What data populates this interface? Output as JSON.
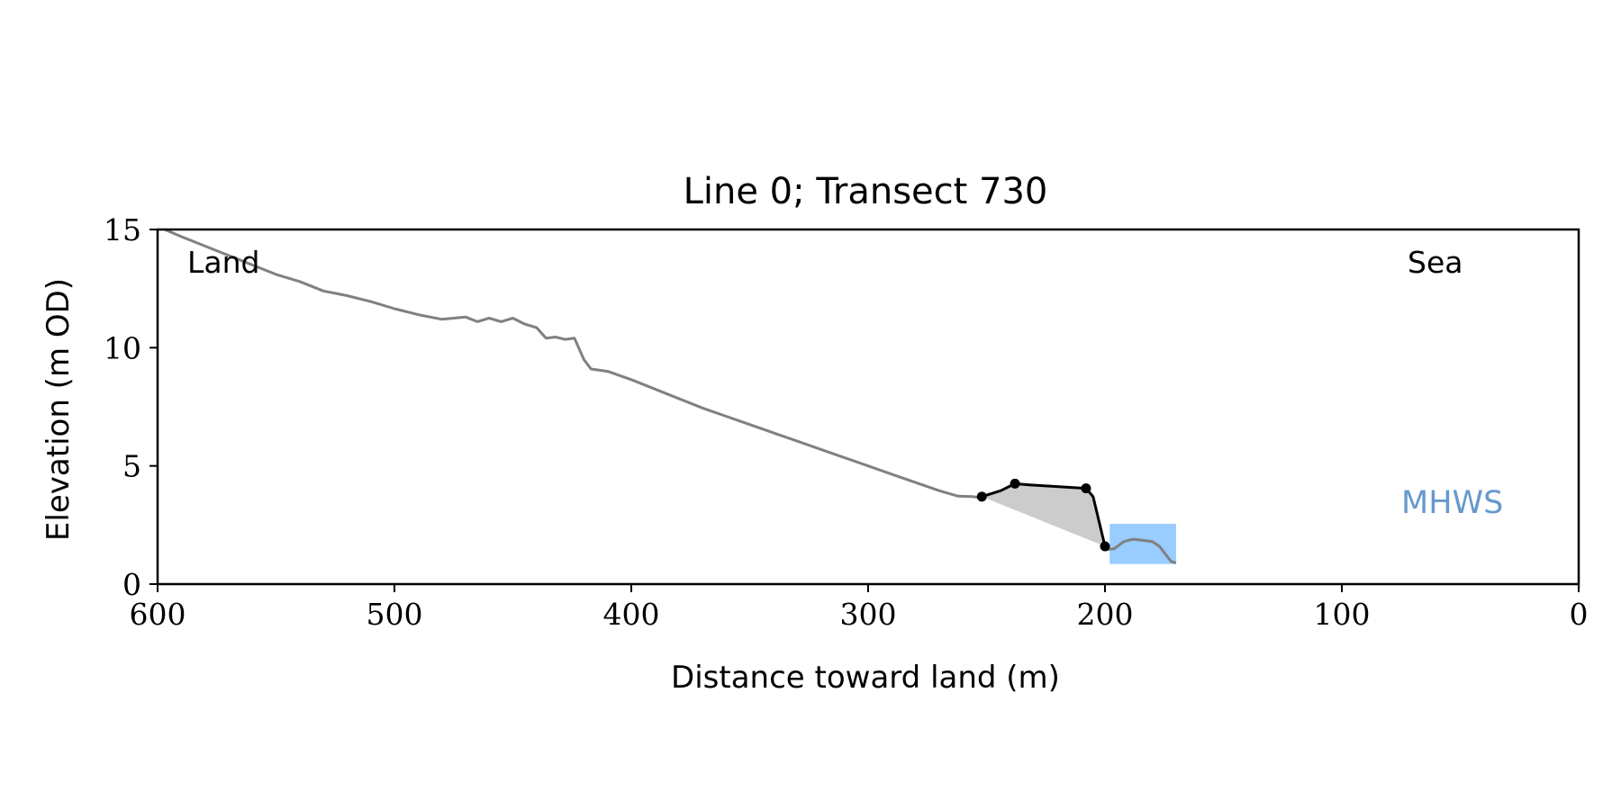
{
  "chart_data": {
    "type": "line",
    "title": "Line 0; Transect 730",
    "xlabel": "Distance toward land (m)",
    "ylabel": "Elevation (m OD)",
    "xlim": [
      600,
      0
    ],
    "ylim": [
      0,
      15
    ],
    "x_ticks": [
      600,
      500,
      400,
      300,
      200,
      100,
      0
    ],
    "y_ticks": [
      0,
      5,
      10,
      15
    ],
    "grid": false,
    "annotations": {
      "land": "Land",
      "sea": "Sea",
      "mhws": "MHWS"
    },
    "colors": {
      "profile": "#808080",
      "feature": "#000000",
      "fill": "#cccccc",
      "water": "#99ccff",
      "mhws_text": "#6699cc"
    },
    "series": [
      {
        "role": "profile",
        "points": [
          [
            597,
            15.0
          ],
          [
            590,
            14.7
          ],
          [
            580,
            14.3
          ],
          [
            570,
            13.9
          ],
          [
            560,
            13.5
          ],
          [
            550,
            13.1
          ],
          [
            540,
            12.8
          ],
          [
            530,
            12.4
          ],
          [
            520,
            12.2
          ],
          [
            510,
            11.95
          ],
          [
            500,
            11.65
          ],
          [
            490,
            11.4
          ],
          [
            480,
            11.2
          ],
          [
            470,
            11.3
          ],
          [
            465,
            11.1
          ],
          [
            460,
            11.25
          ],
          [
            455,
            11.1
          ],
          [
            450,
            11.25
          ],
          [
            445,
            11.0
          ],
          [
            440,
            10.85
          ],
          [
            436,
            10.4
          ],
          [
            432,
            10.45
          ],
          [
            428,
            10.35
          ],
          [
            424,
            10.4
          ],
          [
            420,
            9.5
          ],
          [
            417,
            9.1
          ],
          [
            410,
            9.0
          ],
          [
            400,
            8.65
          ],
          [
            390,
            8.25
          ],
          [
            380,
            7.85
          ],
          [
            370,
            7.45
          ],
          [
            360,
            7.1
          ],
          [
            350,
            6.75
          ],
          [
            340,
            6.4
          ],
          [
            330,
            6.05
          ],
          [
            320,
            5.7
          ],
          [
            310,
            5.35
          ],
          [
            300,
            5.0
          ],
          [
            290,
            4.65
          ],
          [
            280,
            4.3
          ],
          [
            270,
            3.95
          ],
          [
            262,
            3.72
          ],
          [
            256,
            3.7
          ],
          [
            252,
            3.65
          ]
        ]
      },
      {
        "role": "profile",
        "points": [
          [
            200,
            1.45
          ],
          [
            196,
            1.5
          ],
          [
            192,
            1.8
          ],
          [
            188,
            1.9
          ],
          [
            184,
            1.85
          ],
          [
            180,
            1.8
          ],
          [
            177,
            1.6
          ],
          [
            174,
            1.2
          ],
          [
            172,
            0.95
          ],
          [
            170,
            0.9
          ]
        ]
      },
      {
        "role": "feature",
        "points": [
          [
            252,
            3.7
          ],
          [
            244,
            3.95
          ],
          [
            238,
            4.25
          ],
          [
            232,
            4.2
          ],
          [
            208,
            4.05
          ],
          [
            205,
            3.7
          ],
          [
            200,
            1.6
          ]
        ]
      }
    ],
    "feature_markers": [
      [
        252,
        3.7
      ],
      [
        238,
        4.25
      ],
      [
        208,
        4.05
      ],
      [
        200,
        1.6
      ]
    ],
    "water_rect": {
      "x": [
        198,
        170
      ],
      "y": [
        0.85,
        2.55
      ]
    }
  }
}
